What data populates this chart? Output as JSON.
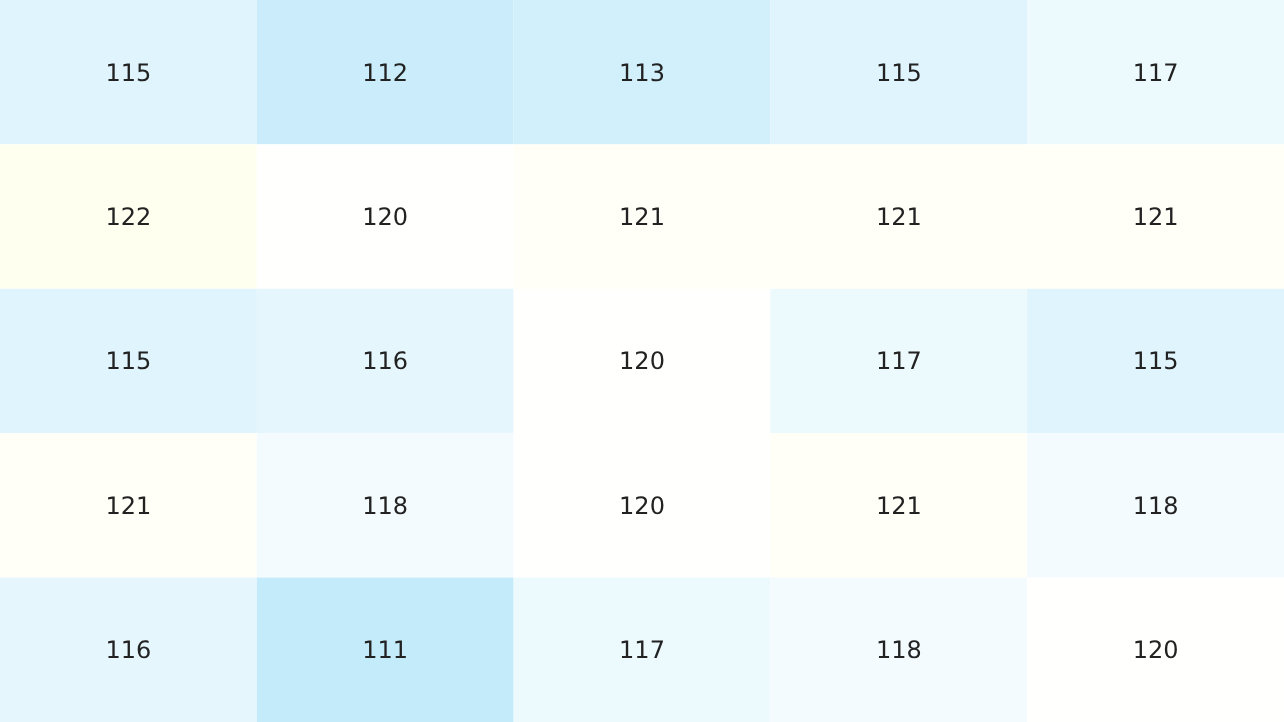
{
  "chart_data": {
    "type": "heatmap",
    "categories": [
      null,
      null,
      null,
      null,
      null
    ],
    "y_categories": [
      null,
      null,
      null,
      null,
      null
    ],
    "cells": [
      [
        115,
        112,
        113,
        115,
        117
      ],
      [
        122,
        120,
        121,
        121,
        121
      ],
      [
        115,
        116,
        120,
        117,
        115
      ],
      [
        121,
        118,
        120,
        121,
        118
      ],
      [
        116,
        111,
        117,
        118,
        120
      ]
    ],
    "data_labels": true
  }
}
